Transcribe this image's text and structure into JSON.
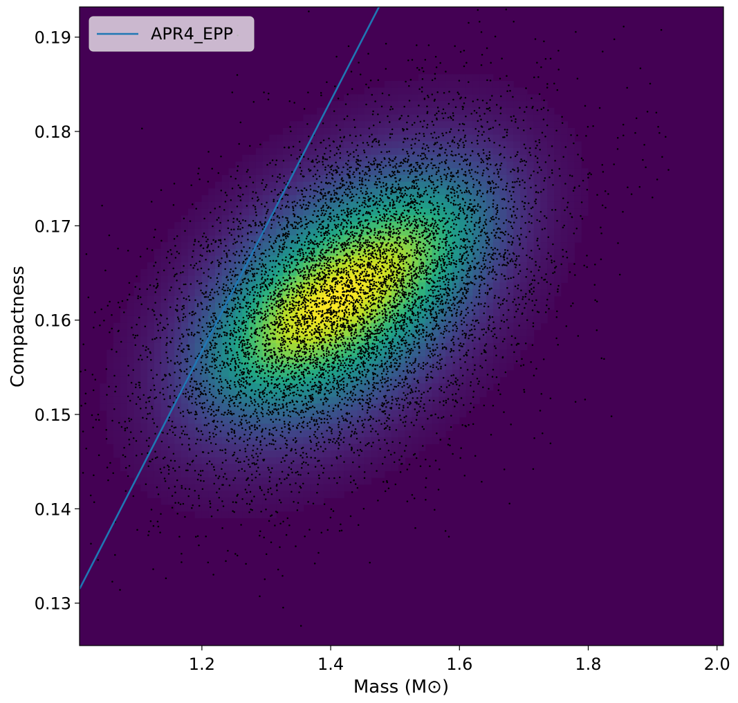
{
  "chart_data": {
    "type": "scatter",
    "title": "",
    "xlabel": "Mass (M⊙)",
    "ylabel": "Compactness",
    "xlim": [
      1.01,
      2.01
    ],
    "ylim": [
      0.1255,
      0.1932
    ],
    "x_ticks": [
      1.2,
      1.4,
      1.6,
      1.8,
      2.0
    ],
    "x_tick_labels": [
      "1.2",
      "1.4",
      "1.6",
      "1.8",
      "2.0"
    ],
    "y_ticks": [
      0.13,
      0.14,
      0.15,
      0.16,
      0.17,
      0.18,
      0.19
    ],
    "y_tick_labels": [
      "0.13",
      "0.14",
      "0.15",
      "0.16",
      "0.17",
      "0.18",
      "0.19"
    ],
    "grid": false,
    "legend_position": "top-left",
    "background_density": {
      "colormap": "viridis",
      "peak": {
        "x": 1.42,
        "y": 0.1625
      },
      "secondary_peaks": [
        {
          "x": 1.3,
          "y": 0.158
        },
        {
          "x": 1.56,
          "y": 0.169
        }
      ]
    },
    "scatter_samples": {
      "color": "#000000",
      "center": {
        "x": 1.43,
        "y": 0.1625
      },
      "spread": {
        "x": 0.15,
        "y": 0.0095
      },
      "correlation": 0.45
    },
    "series": [
      {
        "name": "APR4_EPP",
        "type": "line",
        "color": "#1f77b4",
        "x": [
          1.01,
          1.475
        ],
        "y": [
          0.1315,
          0.1932
        ]
      }
    ],
    "legend": [
      {
        "label": "APR4_EPP",
        "color": "#1f77b4"
      }
    ]
  }
}
